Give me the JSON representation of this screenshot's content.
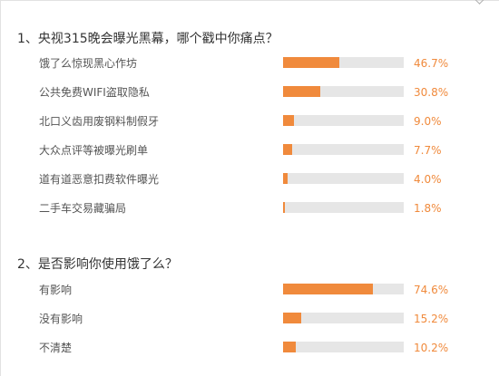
{
  "colors": {
    "bar_fill": "#f08a3c",
    "bar_track": "#e6e6e6",
    "percent_text": "#f08a3c"
  },
  "chart_data": [
    {
      "type": "bar",
      "orientation": "horizontal",
      "title": "1、央视315晚会曝光黑幕，哪个戳中你痛点？",
      "xlim": [
        0,
        100
      ],
      "categories": [
        "饿了么惊现黑心作坊",
        "公共免费WIFI盗取隐私",
        "北口义齿用废钢料制假牙",
        "大众点评等被曝光刷单",
        "道有道恶意扣费软件曝光",
        "二手车交易藏骗局"
      ],
      "values": [
        46.7,
        30.8,
        9.0,
        7.7,
        4.0,
        1.8
      ],
      "value_labels": [
        "46.7%",
        "30.8%",
        "9.0%",
        "7.7%",
        "4.0%",
        "1.8%"
      ]
    },
    {
      "type": "bar",
      "orientation": "horizontal",
      "title": "2、是否影响你使用饿了么？",
      "xlim": [
        0,
        100
      ],
      "categories": [
        "有影响",
        "没有影响",
        "不清楚"
      ],
      "values": [
        74.6,
        15.2,
        10.2
      ],
      "value_labels": [
        "74.6%",
        "15.2%",
        "10.2%"
      ]
    }
  ]
}
